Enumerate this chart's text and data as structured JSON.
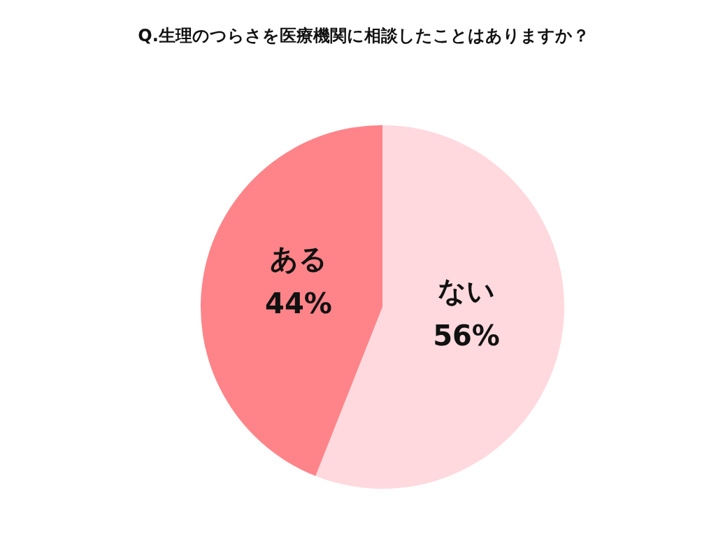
{
  "chart_data": {
    "type": "pie",
    "title": "Q.生理のつらさを医療機関に相談したことはありますか？",
    "categories": [
      "ない",
      "ある"
    ],
    "values": [
      56,
      44
    ],
    "value_labels": [
      "56%",
      "44%"
    ],
    "colors": [
      "#ffd9de",
      "#ff8489"
    ]
  }
}
